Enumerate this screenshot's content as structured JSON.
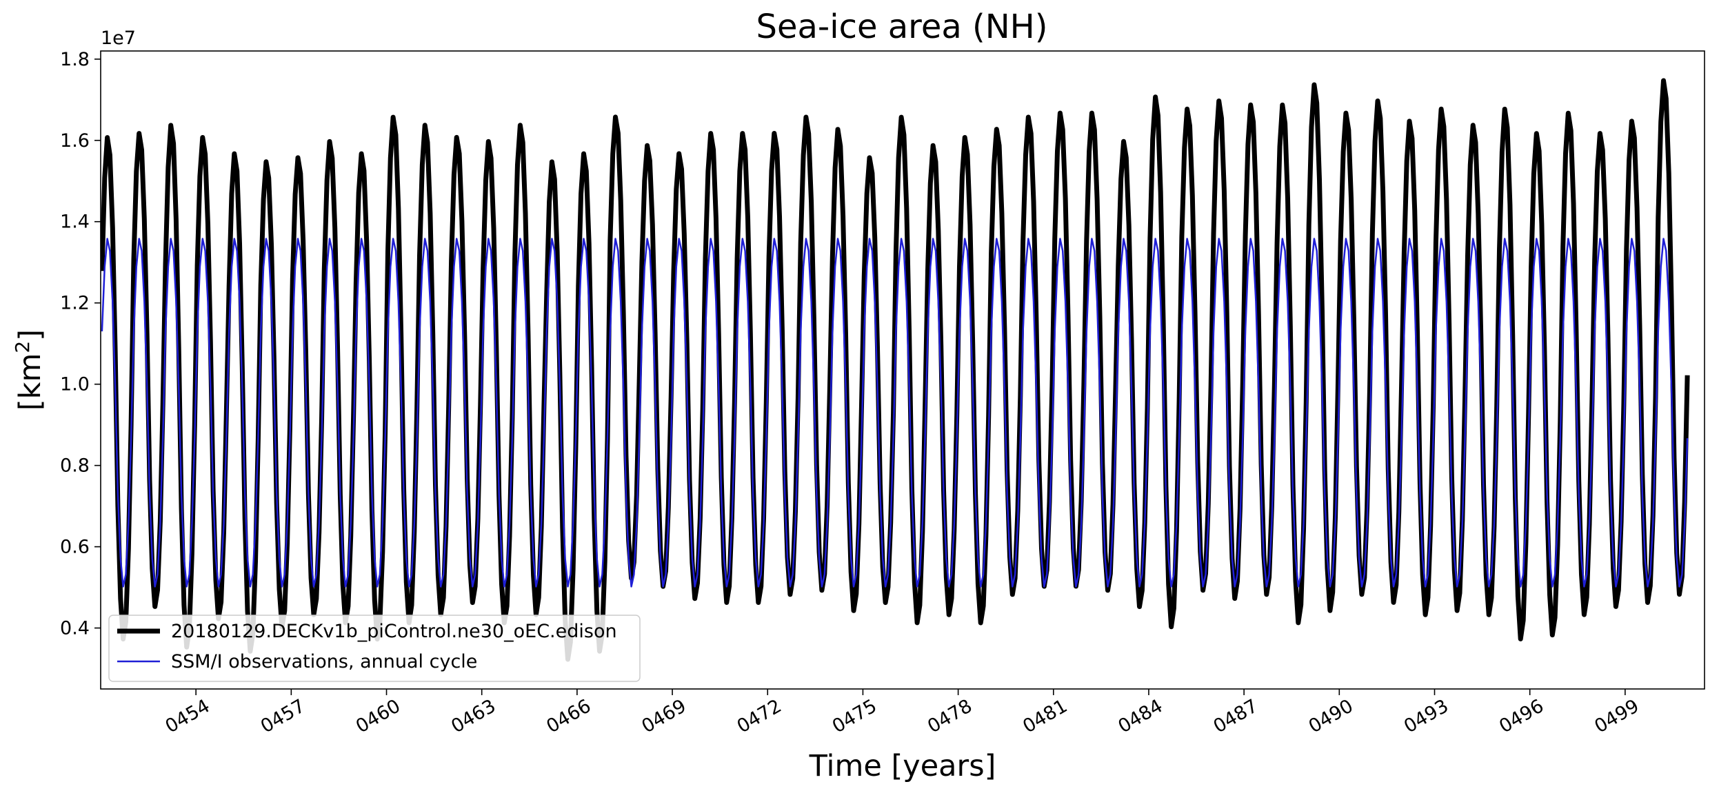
{
  "chart_data": {
    "type": "line",
    "title": "Sea-ice area (NH)",
    "xlabel": "Time [years]",
    "ylabel_base": "[km",
    "ylabel_sup": "2",
    "ylabel_end": "]",
    "y_offset_text": "1e7",
    "xlim": [
      451.0,
      501.5
    ],
    "ylim": [
      2.5,
      18.2
    ],
    "y_scale_note": "values in units of 1e6 km^2 (axis shown x1e7)",
    "yticks": [
      4.0,
      6.0,
      8.0,
      10.0,
      12.0,
      14.0,
      16.0,
      18.0
    ],
    "ytick_labels": [
      "0.4",
      "0.6",
      "0.8",
      "1.0",
      "1.2",
      "1.4",
      "1.6",
      "1.8"
    ],
    "xticks": [
      454,
      457,
      460,
      463,
      466,
      469,
      472,
      475,
      478,
      481,
      484,
      487,
      490,
      493,
      496,
      499
    ],
    "xtick_labels": [
      "0454",
      "0457",
      "0460",
      "0463",
      "0466",
      "0469",
      "0472",
      "0475",
      "0478",
      "0481",
      "0484",
      "0487",
      "0490",
      "0493",
      "0496",
      "0499"
    ],
    "grid": false,
    "legend_position": "lower-left",
    "years": [
      451,
      452,
      453,
      454,
      455,
      456,
      457,
      458,
      459,
      460,
      461,
      462,
      463,
      464,
      465,
      466,
      467,
      468,
      469,
      470,
      471,
      472,
      473,
      474,
      475,
      476,
      477,
      478,
      479,
      480,
      481,
      482,
      483,
      484,
      485,
      486,
      487,
      488,
      489,
      490,
      491,
      492,
      493,
      494,
      495,
      496,
      497,
      498,
      499,
      500
    ],
    "series": [
      {
        "name": "20180129.DECKv1b_piControl.ne30_oEC.edison",
        "color": "#000000",
        "width": "thick",
        "annual_max": [
          16.1,
          16.2,
          16.4,
          16.1,
          15.7,
          15.5,
          15.6,
          16.0,
          15.7,
          16.6,
          16.4,
          16.1,
          16.0,
          16.4,
          15.5,
          15.7,
          16.6,
          15.9,
          15.7,
          16.2,
          16.2,
          16.2,
          16.6,
          16.3,
          15.6,
          16.6,
          15.9,
          16.1,
          16.3,
          16.6,
          16.7,
          16.7,
          16.0,
          17.1,
          16.8,
          17.0,
          16.9,
          16.9,
          17.4,
          16.7,
          17.0,
          16.5,
          16.8,
          16.4,
          16.8,
          16.2,
          16.7,
          16.2,
          16.5,
          17.5
        ],
        "annual_min": [
          3.7,
          4.5,
          3.5,
          4.2,
          3.4,
          4.0,
          4.3,
          4.1,
          3.7,
          4.1,
          4.3,
          4.6,
          4.1,
          4.3,
          3.2,
          3.4,
          5.2,
          5.0,
          4.7,
          4.6,
          4.6,
          4.8,
          4.9,
          4.4,
          4.6,
          4.1,
          4.3,
          4.1,
          4.8,
          5.0,
          5.0,
          4.9,
          4.5,
          4.0,
          4.9,
          4.7,
          4.8,
          4.1,
          4.4,
          4.8,
          4.6,
          4.3,
          4.4,
          4.3,
          3.7,
          3.8,
          4.3,
          4.5,
          4.6,
          4.8
        ]
      },
      {
        "name": "SSM/I observations, annual cycle",
        "color": "#1f1fd6",
        "width": "thin",
        "annual_max": 13.6,
        "annual_min": 5.0
      }
    ]
  }
}
